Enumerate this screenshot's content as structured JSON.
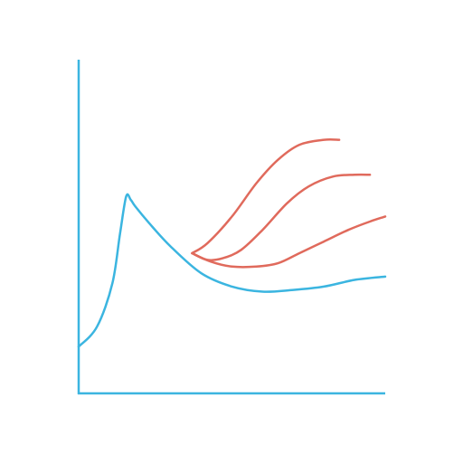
{
  "colors": {
    "axes": "#3bb5e0",
    "baseline": "#3bb5e0",
    "branches": "#e06a5c"
  },
  "chart_data": {
    "type": "line",
    "title": "",
    "xlabel": "",
    "ylabel": "",
    "xlim": [
      0,
      10
    ],
    "ylim": [
      0,
      10
    ],
    "grid": false,
    "legend": "none",
    "series": [
      {
        "role": "baseline",
        "x": [
          0,
          0.6,
          1.1,
          1.35,
          1.55,
          1.7,
          1.85,
          2.3,
          3.0,
          4.0,
          5.0,
          6.0,
          7.0,
          8.0,
          9.0,
          10.0
        ],
        "y": [
          1.4,
          2.0,
          3.3,
          4.8,
          5.9,
          5.8,
          5.6,
          5.1,
          4.4,
          3.6,
          3.2,
          3.05,
          3.1,
          3.2,
          3.4,
          3.5
        ]
      },
      {
        "role": "branch-high",
        "x": [
          3.7,
          4.2,
          5.0,
          5.8,
          6.5,
          7.2,
          8.0,
          8.5
        ],
        "y": [
          4.2,
          4.5,
          5.3,
          6.3,
          7.0,
          7.45,
          7.6,
          7.6
        ]
      },
      {
        "role": "branch-mid",
        "x": [
          3.7,
          4.2,
          4.7,
          5.3,
          6.0,
          6.8,
          7.5,
          8.3,
          9.0,
          9.5
        ],
        "y": [
          4.2,
          4.0,
          4.05,
          4.3,
          4.9,
          5.7,
          6.2,
          6.5,
          6.55,
          6.55
        ]
      },
      {
        "role": "branch-low",
        "x": [
          3.7,
          4.3,
          5.0,
          5.8,
          6.5,
          7.2,
          8.0,
          8.8,
          9.5,
          10.0
        ],
        "y": [
          4.2,
          3.95,
          3.8,
          3.8,
          3.9,
          4.2,
          4.55,
          4.9,
          5.15,
          5.3
        ]
      }
    ]
  }
}
